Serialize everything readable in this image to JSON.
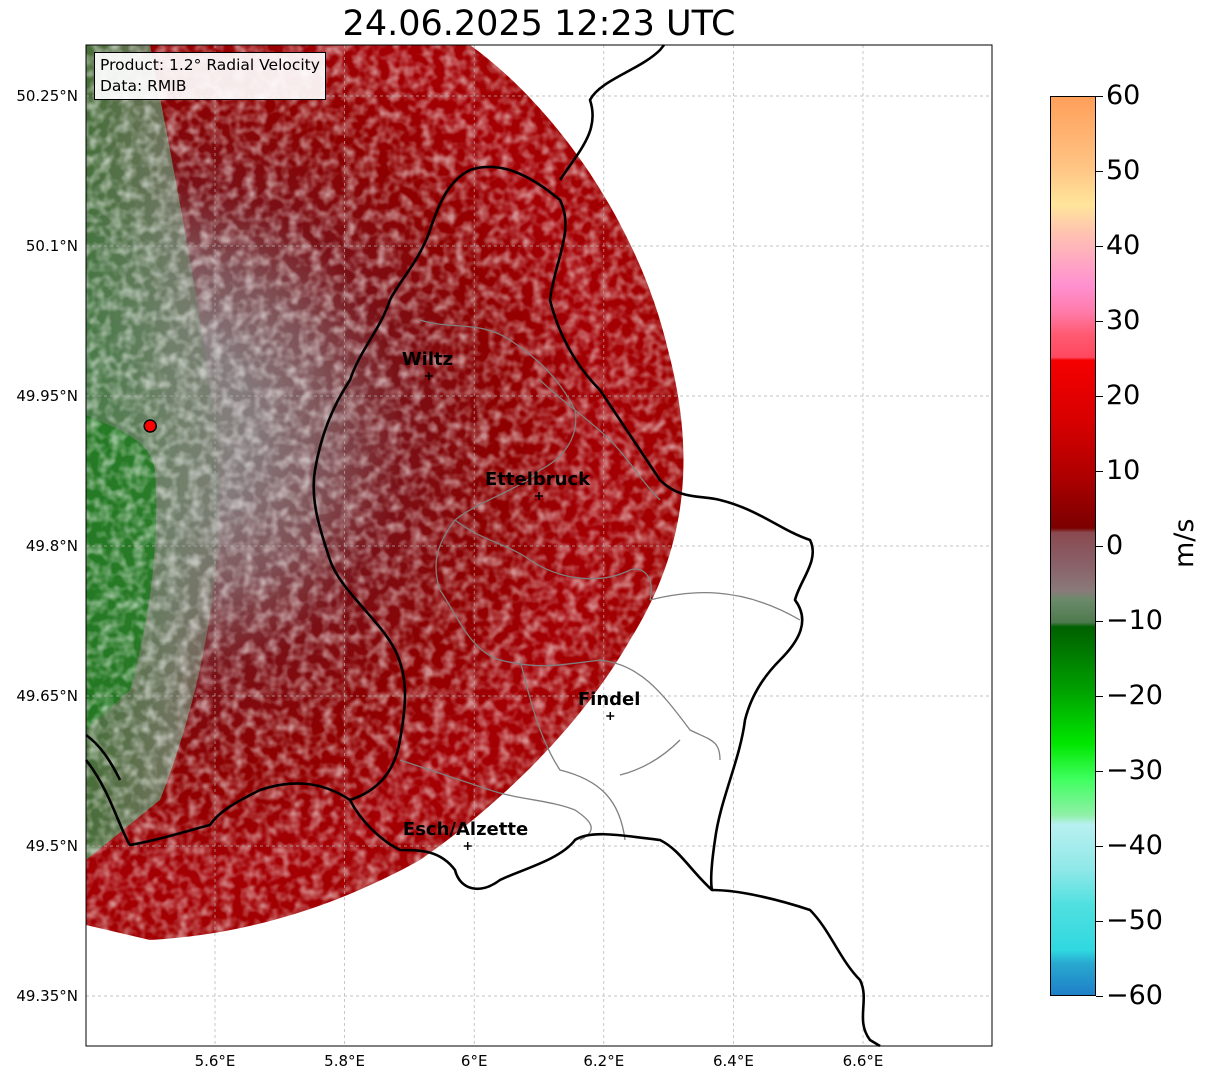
{
  "title": "24.06.2025 12:23 UTC",
  "info": {
    "product": "Product: 1.2° Radial Velocity",
    "data": "Data: RMIB"
  },
  "axes": {
    "lat_ticks": [
      "50.25°N",
      "50.1°N",
      "49.95°N",
      "49.8°N",
      "49.65°N",
      "49.5°N",
      "49.35°N"
    ],
    "lat_values": [
      50.25,
      50.1,
      49.95,
      49.8,
      49.65,
      49.5,
      49.35
    ],
    "lon_ticks": [
      "5.6°E",
      "5.8°E",
      "6°E",
      "6.2°E",
      "6.4°E",
      "6.6°E"
    ],
    "lon_values": [
      5.6,
      5.8,
      6.0,
      6.2,
      6.4,
      6.6
    ],
    "gridlines": true
  },
  "cities": [
    {
      "name": "Wiltz",
      "lon": 5.93,
      "lat": 49.97
    },
    {
      "name": "Ettelbruck",
      "lon": 6.1,
      "lat": 49.85
    },
    {
      "name": "Findel",
      "lon": 6.21,
      "lat": 49.63
    },
    {
      "name": "Esch/Alzette",
      "lon": 5.99,
      "lat": 49.5
    }
  ],
  "radar_site": {
    "lon": 5.5,
    "lat": 49.92
  },
  "colorbar": {
    "unit": "m/s",
    "min": -60,
    "max": 60,
    "ticks": [
      "60",
      "50",
      "40",
      "30",
      "20",
      "10",
      "0",
      "−10",
      "−20",
      "−30",
      "−40",
      "−50",
      "−60"
    ],
    "tick_values": [
      60,
      50,
      40,
      30,
      20,
      10,
      0,
      -10,
      -20,
      -30,
      -40,
      -50,
      -60
    ]
  },
  "colors": {
    "approaching_dark": "#006400",
    "approaching_bright": "#00e600",
    "near_zero": "#7b7b7b",
    "receding_dark": "#7a0000",
    "receding": "#b00000",
    "receding_bright": "#ff0000",
    "pink": "#ff80c0",
    "peach": "#ffe08c",
    "orange": "#ffa050",
    "cyan": "#30e0e0",
    "blue": "#1f77b4",
    "border": "#000000",
    "admin_border": "#808080"
  }
}
